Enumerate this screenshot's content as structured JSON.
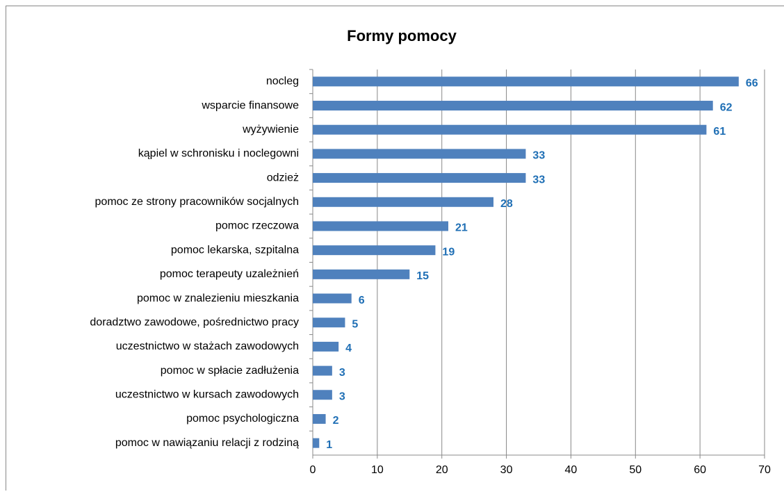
{
  "chart_data": {
    "type": "bar",
    "orientation": "horizontal",
    "title": "Formy pomocy",
    "categories": [
      "nocleg",
      "wsparcie finansowe",
      "wyżywienie",
      "kąpiel w schronisku i noclegowni",
      "odzież",
      "pomoc ze strony pracowników socjalnych",
      "pomoc rzeczowa",
      "pomoc lekarska, szpitalna",
      "pomoc terapeuty uzależnień",
      "pomoc w znalezieniu mieszkania",
      "doradztwo zawodowe, pośrednictwo pracy",
      "uczestnictwo w stażach zawodowych",
      "pomoc w spłacie zadłużenia",
      "uczestnictwo w kursach zawodowych",
      "pomoc psychologiczna",
      "pomoc w nawiązaniu relacji z rodziną"
    ],
    "values": [
      66,
      62,
      61,
      33,
      33,
      28,
      21,
      19,
      15,
      6,
      5,
      4,
      3,
      3,
      2,
      1
    ],
    "color": "#4f81bd",
    "label_color": "#1f6fb5",
    "xlim": [
      0,
      70
    ],
    "xticks": [
      0,
      10,
      20,
      30,
      40,
      50,
      60,
      70
    ],
    "grid": true
  }
}
